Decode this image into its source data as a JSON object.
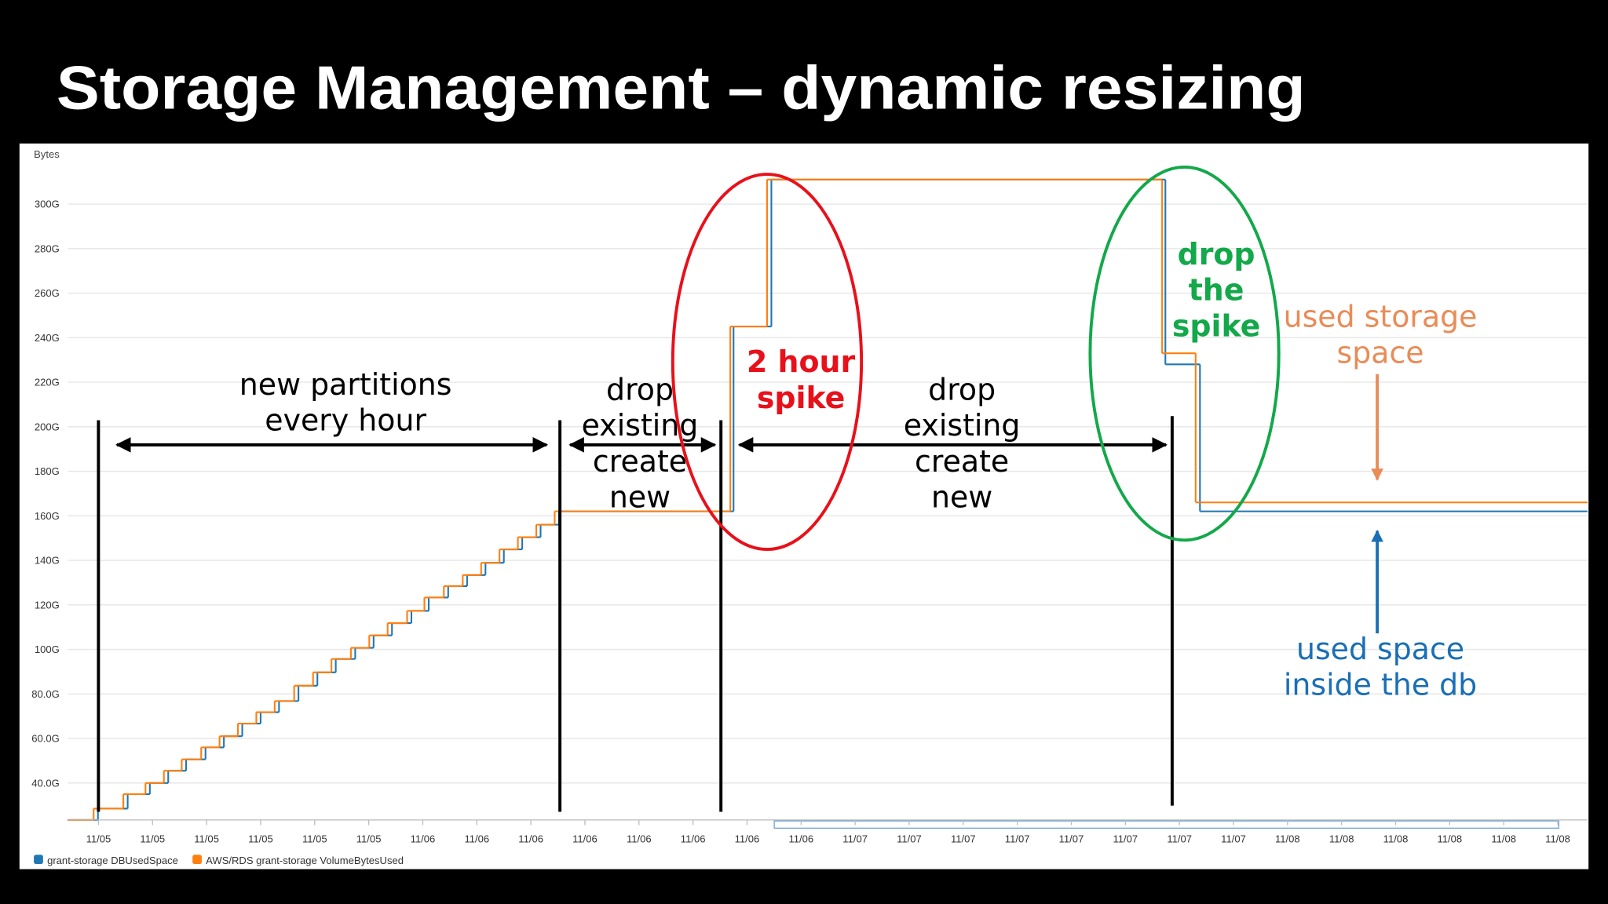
{
  "slide": {
    "title": "Storage Management – dynamic resizing"
  },
  "chart_data": {
    "type": "step",
    "y_label": "Bytes",
    "xlim": [
      -0.57,
      27.55
    ],
    "xticks": [
      {
        "value": 0,
        "label": "11/05"
      },
      {
        "value": 1,
        "label": "11/05"
      },
      {
        "value": 2,
        "label": "11/05"
      },
      {
        "value": 3,
        "label": "11/05"
      },
      {
        "value": 4,
        "label": "11/05"
      },
      {
        "value": 5,
        "label": "11/05"
      },
      {
        "value": 6,
        "label": "11/06"
      },
      {
        "value": 7,
        "label": "11/06"
      },
      {
        "value": 8,
        "label": "11/06"
      },
      {
        "value": 9,
        "label": "11/06"
      },
      {
        "value": 10,
        "label": "11/06"
      },
      {
        "value": 11,
        "label": "11/06"
      },
      {
        "value": 12,
        "label": "11/06"
      },
      {
        "value": 13,
        "label": "11/06"
      },
      {
        "value": 14,
        "label": "11/07"
      },
      {
        "value": 15,
        "label": "11/07"
      },
      {
        "value": 16,
        "label": "11/07"
      },
      {
        "value": 17,
        "label": "11/07"
      },
      {
        "value": 18,
        "label": "11/07"
      },
      {
        "value": 19,
        "label": "11/07"
      },
      {
        "value": 20,
        "label": "11/07"
      },
      {
        "value": 21,
        "label": "11/07"
      },
      {
        "value": 22,
        "label": "11/08"
      },
      {
        "value": 23,
        "label": "11/08"
      },
      {
        "value": 24,
        "label": "11/08"
      },
      {
        "value": 25,
        "label": "11/08"
      },
      {
        "value": 26,
        "label": "11/08"
      },
      {
        "value": 27,
        "label": "11/08"
      }
    ],
    "ylim": [
      23.4,
      327.2
    ],
    "yticks": [
      {
        "value": 40,
        "label": "40.0G"
      },
      {
        "value": 60,
        "label": "60.0G"
      },
      {
        "value": 80,
        "label": "80.0G"
      },
      {
        "value": 100,
        "label": "100G"
      },
      {
        "value": 120,
        "label": "120G"
      },
      {
        "value": 140,
        "label": "140G"
      },
      {
        "value": 160,
        "label": "160G"
      },
      {
        "value": 180,
        "label": "180G"
      },
      {
        "value": 200,
        "label": "200G"
      },
      {
        "value": 220,
        "label": "220G"
      },
      {
        "value": 240,
        "label": "240G"
      },
      {
        "value": 260,
        "label": "260G"
      },
      {
        "value": 280,
        "label": "280G"
      },
      {
        "value": 300,
        "label": "300G"
      }
    ],
    "grid": true,
    "series": [
      {
        "name": "grant-storage DBUsedSpace",
        "color": "#1f77b4",
        "x": [
          -0.57,
          -0.01,
          0.54,
          0.95,
          1.29,
          1.62,
          1.98,
          2.32,
          2.66,
          3.0,
          3.34,
          3.7,
          4.05,
          4.39,
          4.75,
          5.09,
          5.43,
          5.79,
          6.11,
          6.47,
          6.82,
          7.16,
          7.5,
          7.84,
          8.18,
          8.52,
          11.75,
          12.45,
          19.74,
          20.38,
          27.55
        ],
        "values": [
          23.4,
          28.5,
          35,
          40,
          45.5,
          50.6,
          56,
          61,
          66.7,
          71.8,
          76.8,
          83.7,
          89.7,
          95.7,
          100.7,
          106.3,
          111.8,
          117.3,
          123.3,
          128.4,
          133.4,
          138.9,
          144.9,
          150.4,
          156,
          162,
          245,
          311,
          228,
          162,
          162
        ]
      },
      {
        "name": "AWS/RDS grant-storage VolumeBytesUsed",
        "color": "#ff7f0e",
        "x": [
          -0.57,
          -0.09,
          0.46,
          0.87,
          1.21,
          1.54,
          1.9,
          2.24,
          2.58,
          2.92,
          3.26,
          3.62,
          3.97,
          4.31,
          4.67,
          5.01,
          5.35,
          5.71,
          6.03,
          6.39,
          6.74,
          7.08,
          7.42,
          7.76,
          8.1,
          8.44,
          11.69,
          12.37,
          19.68,
          20.3,
          27.55
        ],
        "values": [
          23.4,
          28.5,
          35,
          40,
          45.5,
          50.6,
          56,
          61,
          66.7,
          71.8,
          76.8,
          83.7,
          89.7,
          95.7,
          100.7,
          106.3,
          111.8,
          117.3,
          123.3,
          128.4,
          133.4,
          138.9,
          144.9,
          150.4,
          156,
          162,
          245,
          311,
          233,
          166,
          166
        ]
      }
    ],
    "annotations": [
      {
        "lines": [
          "new partitions",
          "every hour"
        ],
        "color": "#000000"
      },
      {
        "lines": [
          "drop",
          "existing",
          "create",
          "new"
        ],
        "color": "#000000"
      },
      {
        "lines": [
          "2 hour",
          "spike"
        ],
        "color": "#e8101a"
      },
      {
        "lines": [
          "drop",
          "existing",
          "create",
          "new"
        ],
        "color": "#000000"
      },
      {
        "lines": [
          "drop",
          "the",
          "spike"
        ],
        "color": "#13a84a"
      },
      {
        "lines": [
          "used storage",
          "space"
        ],
        "color": "#e98c58"
      },
      {
        "lines": [
          "used space",
          "inside the db"
        ],
        "color": "#1a6fb5"
      }
    ]
  }
}
